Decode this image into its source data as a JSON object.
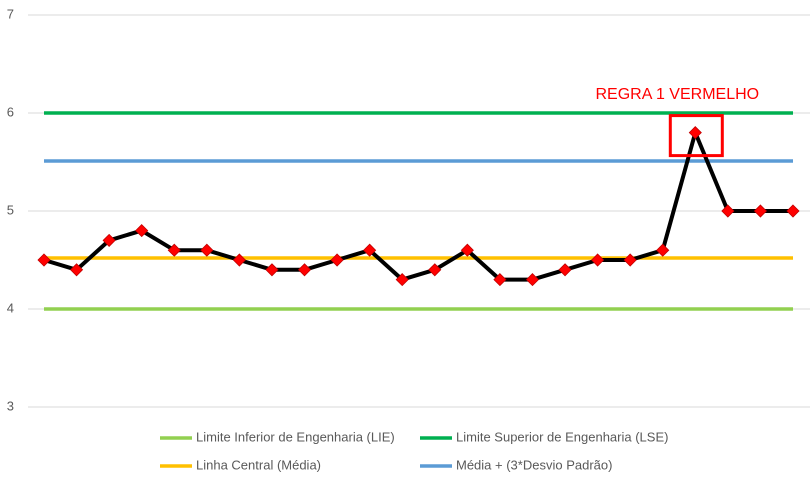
{
  "chart_data": {
    "type": "line",
    "series": [
      {
        "name": "Limite Inferior de Engenharia (LIE)",
        "color": "#92d050",
        "values": [
          4,
          4,
          4,
          4,
          4,
          4,
          4,
          4,
          4,
          4,
          4,
          4,
          4,
          4,
          4,
          4,
          4,
          4,
          4,
          4,
          4,
          4,
          4,
          4
        ]
      },
      {
        "name": "Limite Superior de Engenharia (LSE)",
        "color": "#00b050",
        "values": [
          6,
          6,
          6,
          6,
          6,
          6,
          6,
          6,
          6,
          6,
          6,
          6,
          6,
          6,
          6,
          6,
          6,
          6,
          6,
          6,
          6,
          6,
          6,
          6
        ]
      },
      {
        "name": "Linha Central (Média)",
        "color": "#ffc000",
        "values": [
          4.52,
          4.52,
          4.52,
          4.52,
          4.52,
          4.52,
          4.52,
          4.52,
          4.52,
          4.52,
          4.52,
          4.52,
          4.52,
          4.52,
          4.52,
          4.52,
          4.52,
          4.52,
          4.52,
          4.52,
          4.52,
          4.52,
          4.52,
          4.52
        ]
      },
      {
        "name": "Média + (3*Desvio Padrão)",
        "color": "#5b9bd5",
        "values": [
          5.51,
          5.51,
          5.51,
          5.51,
          5.51,
          5.51,
          5.51,
          5.51,
          5.51,
          5.51,
          5.51,
          5.51,
          5.51,
          5.51,
          5.51,
          5.51,
          5.51,
          5.51,
          5.51,
          5.51,
          5.51,
          5.51,
          5.51,
          5.51
        ]
      },
      {
        "color": "#000000",
        "marker_color": "#ff0000",
        "values": [
          4.5,
          4.4,
          4.7,
          4.8,
          4.6,
          4.6,
          4.5,
          4.4,
          4.4,
          4.5,
          4.6,
          4.3,
          4.4,
          4.6,
          4.3,
          4.3,
          4.4,
          4.5,
          4.5,
          4.6,
          5.8,
          5.0,
          5.0,
          5.0
        ]
      }
    ],
    "ylim": [
      3,
      7
    ],
    "yticks": [
      3,
      4,
      5,
      6,
      7
    ],
    "grid": true,
    "annotation": {
      "text": "REGRA 1 VERMELHO",
      "color": "#ff0000",
      "series": 4,
      "point": 20
    }
  }
}
